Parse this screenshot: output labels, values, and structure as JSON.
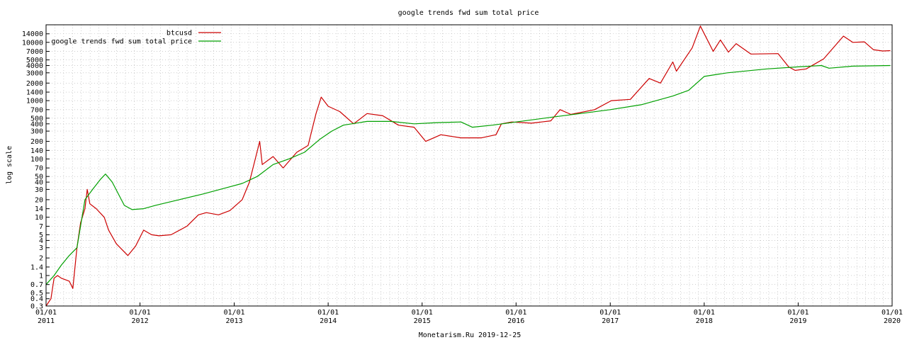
{
  "chart_data": {
    "type": "line",
    "title": "google trends fwd sum total price",
    "ylabel": "log scale",
    "footer": "Monetarism.Ru 2019-12-25",
    "y_scale": "log",
    "ylim": [
      0.3,
      20000
    ],
    "xlim": [
      "2011-01-01",
      "2020-01-01"
    ],
    "grid": true,
    "legend_position": "top-left",
    "y_ticks": [
      0.3,
      0.4,
      0.5,
      0.7,
      1,
      1.4,
      2,
      3,
      4,
      5,
      7,
      10,
      14,
      20,
      30,
      40,
      50,
      70,
      100,
      140,
      200,
      300,
      400,
      500,
      700,
      1000,
      1400,
      2000,
      3000,
      4000,
      5000,
      7000,
      10000,
      14000
    ],
    "y_tick_labels": [
      "0.3",
      "0.4",
      "0.5",
      "0.7",
      "1",
      "1.4",
      "2",
      "3",
      "4",
      "5",
      "7",
      "10",
      "14",
      "20",
      "30",
      "40",
      "50",
      "70",
      "100",
      "140",
      "200",
      "300",
      "400",
      "500",
      "700",
      "1000",
      "1400",
      "2000",
      "3000",
      "4000",
      "5000",
      "7000",
      "10000",
      "14000"
    ],
    "x_ticks": [
      {
        "date": "2011-01-01",
        "line1": "01/01",
        "line2": "2011"
      },
      {
        "date": "2012-01-01",
        "line1": "01/01",
        "line2": "2012"
      },
      {
        "date": "2013-01-01",
        "line1": "01/01",
        "line2": "2013"
      },
      {
        "date": "2014-01-01",
        "line1": "01/01",
        "line2": "2014"
      },
      {
        "date": "2015-01-01",
        "line1": "01/01",
        "line2": "2015"
      },
      {
        "date": "2016-01-01",
        "line1": "01/01",
        "line2": "2016"
      },
      {
        "date": "2017-01-01",
        "line1": "01/01",
        "line2": "2017"
      },
      {
        "date": "2018-01-01",
        "line1": "01/01",
        "line2": "2018"
      },
      {
        "date": "2019-01-01",
        "line1": "01/01",
        "line2": "2019"
      },
      {
        "date": "2020-01-01",
        "line1": "01/01",
        "line2": "2020"
      }
    ],
    "series": [
      {
        "name": "btcusd",
        "color": "#cc0000",
        "points": [
          [
            "2011-01-01",
            0.3
          ],
          [
            "2011-01-20",
            0.4
          ],
          [
            "2011-02-01",
            0.9
          ],
          [
            "2011-02-15",
            1.0
          ],
          [
            "2011-03-01",
            0.9
          ],
          [
            "2011-04-01",
            0.8
          ],
          [
            "2011-04-15",
            0.6
          ],
          [
            "2011-05-01",
            3.0
          ],
          [
            "2011-05-15",
            8.0
          ],
          [
            "2011-06-01",
            14.0
          ],
          [
            "2011-06-10",
            30.0
          ],
          [
            "2011-06-20",
            17.0
          ],
          [
            "2011-07-15",
            14.0
          ],
          [
            "2011-08-15",
            10.0
          ],
          [
            "2011-09-01",
            6.0
          ],
          [
            "2011-10-01",
            3.5
          ],
          [
            "2011-11-15",
            2.2
          ],
          [
            "2011-12-15",
            3.2
          ],
          [
            "2012-01-15",
            6.0
          ],
          [
            "2012-02-15",
            5.0
          ],
          [
            "2012-03-15",
            4.8
          ],
          [
            "2012-05-01",
            5.0
          ],
          [
            "2012-07-01",
            7.0
          ],
          [
            "2012-08-15",
            11.0
          ],
          [
            "2012-09-15",
            12.0
          ],
          [
            "2012-11-01",
            11.0
          ],
          [
            "2012-12-15",
            13.0
          ],
          [
            "2013-02-01",
            20.0
          ],
          [
            "2013-03-01",
            40.0
          ],
          [
            "2013-04-10",
            200.0
          ],
          [
            "2013-04-20",
            80.0
          ],
          [
            "2013-06-01",
            110.0
          ],
          [
            "2013-07-10",
            70.0
          ],
          [
            "2013-09-01",
            130.0
          ],
          [
            "2013-10-15",
            170.0
          ],
          [
            "2013-11-15",
            600.0
          ],
          [
            "2013-12-05",
            1150.0
          ],
          [
            "2014-01-01",
            800.0
          ],
          [
            "2014-02-15",
            650.0
          ],
          [
            "2014-04-10",
            400.0
          ],
          [
            "2014-06-01",
            600.0
          ],
          [
            "2014-08-01",
            550.0
          ],
          [
            "2014-10-01",
            380.0
          ],
          [
            "2014-12-01",
            350.0
          ],
          [
            "2015-01-15",
            200.0
          ],
          [
            "2015-03-15",
            260.0
          ],
          [
            "2015-06-01",
            230.0
          ],
          [
            "2015-08-20",
            230.0
          ],
          [
            "2015-10-15",
            260.0
          ],
          [
            "2015-11-05",
            400.0
          ],
          [
            "2015-12-15",
            430.0
          ],
          [
            "2016-03-01",
            410.0
          ],
          [
            "2016-05-15",
            450.0
          ],
          [
            "2016-06-20",
            700.0
          ],
          [
            "2016-08-01",
            580.0
          ],
          [
            "2016-11-01",
            700.0
          ],
          [
            "2017-01-05",
            1000.0
          ],
          [
            "2017-03-20",
            1050.0
          ],
          [
            "2017-06-01",
            2400.0
          ],
          [
            "2017-07-15",
            2000.0
          ],
          [
            "2017-09-01",
            4600.0
          ],
          [
            "2017-09-15",
            3200.0
          ],
          [
            "2017-11-15",
            8000.0
          ],
          [
            "2017-12-17",
            19000.0
          ],
          [
            "2018-02-05",
            7000.0
          ],
          [
            "2018-03-05",
            11000.0
          ],
          [
            "2018-04-05",
            6800.0
          ],
          [
            "2018-05-05",
            9500.0
          ],
          [
            "2018-07-01",
            6300.0
          ],
          [
            "2018-10-15",
            6400.0
          ],
          [
            "2018-11-25",
            3800.0
          ],
          [
            "2018-12-20",
            3300.0
          ],
          [
            "2019-02-01",
            3500.0
          ],
          [
            "2019-04-10",
            5200.0
          ],
          [
            "2019-06-26",
            12800.0
          ],
          [
            "2019-08-01",
            10000.0
          ],
          [
            "2019-09-15",
            10200.0
          ],
          [
            "2019-10-20",
            7500.0
          ],
          [
            "2019-11-25",
            7100.0
          ],
          [
            "2019-12-25",
            7200.0
          ]
        ]
      },
      {
        "name": "google trends fwd sum total price",
        "color": "#00a000",
        "points": [
          [
            "2011-01-01",
            0.7
          ],
          [
            "2011-02-01",
            1.0
          ],
          [
            "2011-03-01",
            1.5
          ],
          [
            "2011-04-01",
            2.2
          ],
          [
            "2011-05-01",
            3.0
          ],
          [
            "2011-06-01",
            20.0
          ],
          [
            "2011-07-01",
            30.0
          ],
          [
            "2011-08-01",
            45.0
          ],
          [
            "2011-08-20",
            55.0
          ],
          [
            "2011-09-15",
            40.0
          ],
          [
            "2011-11-01",
            16.0
          ],
          [
            "2011-12-01",
            13.5
          ],
          [
            "2012-01-15",
            14.0
          ],
          [
            "2012-03-01",
            16.0
          ],
          [
            "2012-06-01",
            20.0
          ],
          [
            "2012-09-01",
            25.0
          ],
          [
            "2012-12-01",
            32.0
          ],
          [
            "2013-02-01",
            38.0
          ],
          [
            "2013-04-01",
            50.0
          ],
          [
            "2013-06-01",
            80.0
          ],
          [
            "2013-08-01",
            100.0
          ],
          [
            "2013-10-01",
            130.0
          ],
          [
            "2013-12-01",
            220.0
          ],
          [
            "2014-01-15",
            300.0
          ],
          [
            "2014-03-01",
            380.0
          ],
          [
            "2014-06-01",
            440.0
          ],
          [
            "2014-09-01",
            440.0
          ],
          [
            "2014-12-01",
            400.0
          ],
          [
            "2015-03-01",
            420.0
          ],
          [
            "2015-06-01",
            430.0
          ],
          [
            "2015-07-15",
            350.0
          ],
          [
            "2015-10-01",
            380.0
          ],
          [
            "2016-01-01",
            430.0
          ],
          [
            "2016-06-01",
            530.0
          ],
          [
            "2016-10-01",
            620.0
          ],
          [
            "2017-01-01",
            700.0
          ],
          [
            "2017-05-01",
            850.0
          ],
          [
            "2017-09-01",
            1200.0
          ],
          [
            "2017-11-01",
            1500.0
          ],
          [
            "2018-01-01",
            2600.0
          ],
          [
            "2018-04-01",
            3000.0
          ],
          [
            "2018-09-01",
            3500.0
          ],
          [
            "2019-01-01",
            3800.0
          ],
          [
            "2019-04-01",
            4000.0
          ],
          [
            "2019-05-01",
            3600.0
          ],
          [
            "2019-08-01",
            3900.0
          ],
          [
            "2019-12-25",
            4000.0
          ]
        ]
      }
    ]
  }
}
